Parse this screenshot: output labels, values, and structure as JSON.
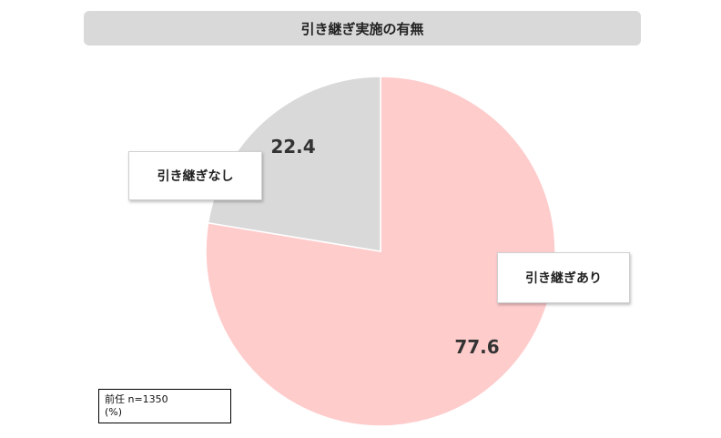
{
  "chart_data": {
    "type": "pie",
    "title": "引き継ぎ実施の有無",
    "slices": [
      {
        "label": "引き継ぎあり",
        "value": 77.6,
        "value_label": "77.6",
        "color": "#ffcccc"
      },
      {
        "label": "引き継ぎなし",
        "value": 22.4,
        "value_label": "22.4",
        "color": "#d9d9d9"
      }
    ],
    "start_angle": "12 o'clock",
    "direction": "clockwise",
    "legend": "callout labels"
  },
  "note": {
    "line1": "前任 n=1350",
    "line2": "(%)"
  }
}
